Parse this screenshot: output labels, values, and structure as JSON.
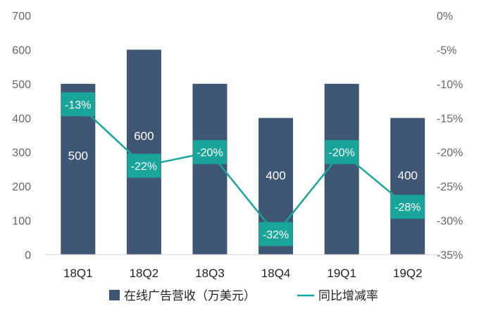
{
  "chart_data": {
    "type": "bar",
    "categories": [
      "18Q1",
      "18Q2",
      "18Q3",
      "18Q4",
      "19Q1",
      "19Q2"
    ],
    "series": [
      {
        "name": "在线广告营收（万美元）",
        "type": "bar",
        "axis": "left",
        "values": [
          500,
          600,
          500,
          400,
          500,
          400
        ],
        "labels": [
          "500",
          "600",
          "500",
          "400",
          "500",
          "400"
        ]
      },
      {
        "name": "同比增减率",
        "type": "line",
        "axis": "right",
        "values": [
          -13,
          -22,
          -20,
          -32,
          -20,
          -28
        ],
        "labels": [
          "-13%",
          "-22%",
          "-20%",
          "-32%",
          "-20%",
          "-28%"
        ]
      }
    ],
    "y_left": {
      "min": 0,
      "max": 700,
      "ticks": [
        "0",
        "100",
        "200",
        "300",
        "400",
        "500",
        "600",
        "700"
      ]
    },
    "y_right": {
      "min": -35,
      "max": 0,
      "ticks": [
        "0%",
        "-5%",
        "-10%",
        "-15%",
        "-20%",
        "-25%",
        "-30%",
        "-35%"
      ]
    },
    "legend_position": "bottom",
    "grid": false
  },
  "colors": {
    "bar": "#3e5674",
    "line": "#1aa59a",
    "label_box": "#1aa59a"
  }
}
